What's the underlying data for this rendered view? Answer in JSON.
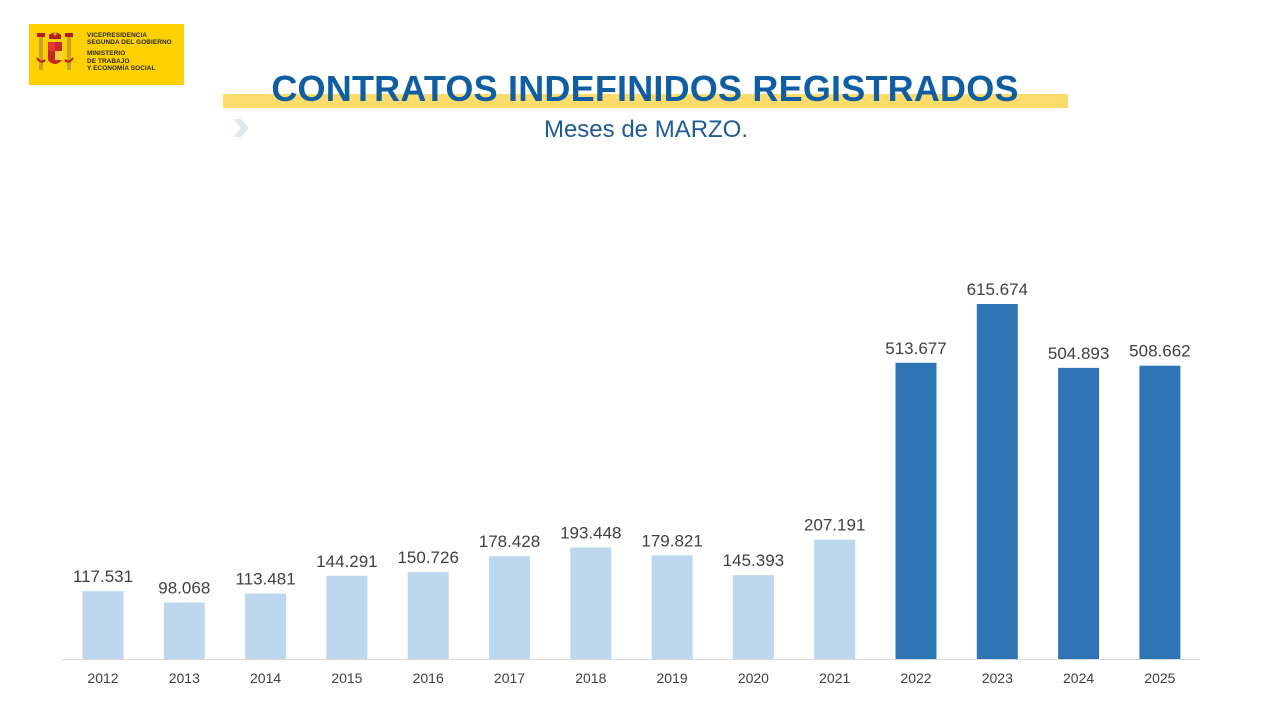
{
  "logo": {
    "lines": [
      "VICEPRESIDENCIA",
      "SEGUNDA DEL GOBIERNO",
      "MINISTERIO",
      "DE TRABAJO",
      "Y ECONOMÍA SOCIAL"
    ],
    "background_color": "#fdd000"
  },
  "header": {
    "title": "CONTRATOS INDEFINIDOS REGISTRADOS",
    "subtitle": "Meses de MARZO.",
    "accent_icon": "chevron-right-icon"
  },
  "chart_data": {
    "type": "bar",
    "title": "CONTRATOS INDEFINIDOS REGISTRADOS",
    "subtitle": "Meses de MARZO.",
    "categories": [
      "2012",
      "2013",
      "2014",
      "2015",
      "2016",
      "2017",
      "2018",
      "2019",
      "2020",
      "2021",
      "2022",
      "2023",
      "2024",
      "2025"
    ],
    "values": [
      117531,
      98068,
      113481,
      144291,
      150726,
      178428,
      193448,
      179821,
      145393,
      207191,
      513677,
      615674,
      504893,
      508662
    ],
    "value_labels": [
      "117.531",
      "98.068",
      "113.481",
      "144.291",
      "150.726",
      "178.428",
      "193.448",
      "179.821",
      "145.393",
      "207.191",
      "513.677",
      "615.674",
      "504.893",
      "508.662"
    ],
    "highlight_from_index": 10,
    "colors": {
      "light": "#bdd7ee",
      "dark": "#2e75b6"
    },
    "xlabel": "",
    "ylabel": "",
    "ylim": [
      0,
      615674
    ],
    "grid": false,
    "legend": "none"
  }
}
